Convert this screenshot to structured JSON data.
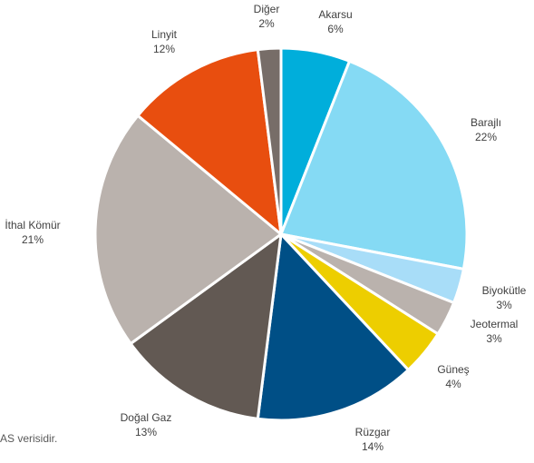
{
  "chart_data": {
    "type": "pie",
    "title": "",
    "slices": [
      {
        "label": "Akarsu",
        "value": 6,
        "value_label": "6%",
        "color": "#00AEDB"
      },
      {
        "label": "Barajlı",
        "value": 22,
        "value_label": "22%",
        "color": "#85DAF4"
      },
      {
        "label": "Biyokütle",
        "value": 3,
        "value_label": "3%",
        "color": "#A8DDF8"
      },
      {
        "label": "Jeotermal",
        "value": 3,
        "value_label": "3%",
        "color": "#BAB2AD"
      },
      {
        "label": "Güneş",
        "value": 4,
        "value_label": "4%",
        "color": "#EDCE00"
      },
      {
        "label": "Rüzgar",
        "value": 14,
        "value_label": "14%",
        "color": "#004F86"
      },
      {
        "label": "Doğal Gaz",
        "value": 13,
        "value_label": "13%",
        "color": "#625953"
      },
      {
        "label": "İthal Kömür",
        "value": 21,
        "value_label": "21%",
        "color": "#BAB2AD"
      },
      {
        "label": "Linyit",
        "value": 12,
        "value_label": "12%",
        "color": "#E84E0F"
      },
      {
        "label": "Diğer",
        "value": 2,
        "value_label": "2%",
        "color": "#776D68"
      }
    ]
  },
  "source_note": "AS verisidir."
}
